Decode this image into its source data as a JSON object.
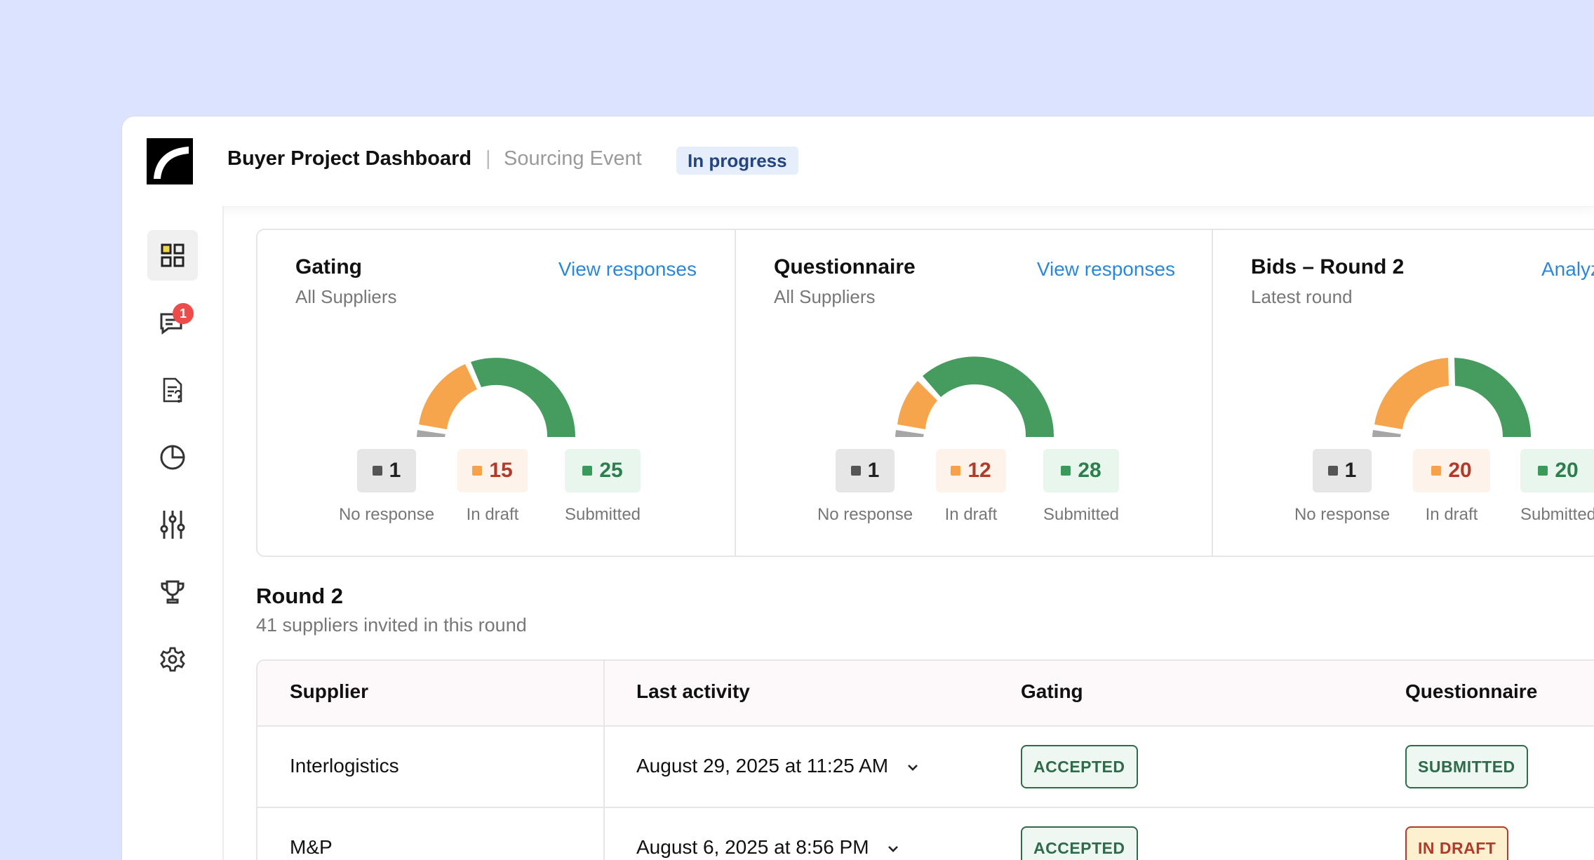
{
  "header": {
    "title": "Buyer Project Dashboard",
    "separator": "|",
    "subtitle": "Sourcing Event",
    "status": "In progress"
  },
  "sidebar": {
    "items": [
      {
        "icon": "dashboard-grid-icon",
        "active": true
      },
      {
        "icon": "messages-icon",
        "badge": "1"
      },
      {
        "icon": "document-question-icon"
      },
      {
        "icon": "pie-chart-icon"
      },
      {
        "icon": "sliders-icon"
      },
      {
        "icon": "trophy-icon"
      },
      {
        "icon": "gear-icon"
      }
    ]
  },
  "cards": [
    {
      "title": "Gating",
      "subtitle": "All Suppliers",
      "link": "View responses",
      "counts": {
        "no_response": "1",
        "in_draft": "15",
        "submitted": "25"
      },
      "labels": {
        "no_response": "No response",
        "in_draft": "In draft",
        "submitted": "Submitted"
      }
    },
    {
      "title": "Questionnaire",
      "subtitle": "All Suppliers",
      "link": "View responses",
      "counts": {
        "no_response": "1",
        "in_draft": "12",
        "submitted": "28"
      },
      "labels": {
        "no_response": "No response",
        "in_draft": "In draft",
        "submitted": "Submitted"
      }
    },
    {
      "title": "Bids – Round 2",
      "subtitle": "Latest round",
      "link": "Analyze",
      "counts": {
        "no_response": "1",
        "in_draft": "20",
        "submitted": "20"
      },
      "labels": {
        "no_response": "No response",
        "in_draft": "In draft",
        "submitted": "Submitted"
      }
    }
  ],
  "colors": {
    "no_response": "#a6a6a6",
    "in_draft": "#f7a54c",
    "submitted": "#469c5f",
    "link": "#2b88d8"
  },
  "round": {
    "title": "Round 2",
    "subtitle": "41 suppliers invited in this round"
  },
  "table": {
    "columns": [
      "Supplier",
      "Last activity",
      "Gating",
      "Questionnaire"
    ],
    "rows": [
      {
        "supplier": "Interlogistics",
        "last_activity": "August 29, 2025 at 11:25 AM",
        "gating": "ACCEPTED",
        "questionnaire": "SUBMITTED"
      },
      {
        "supplier": "M&P",
        "last_activity": "August 6, 2025 at 8:56 PM",
        "gating": "ACCEPTED",
        "questionnaire": "IN DRAFT"
      }
    ]
  }
}
